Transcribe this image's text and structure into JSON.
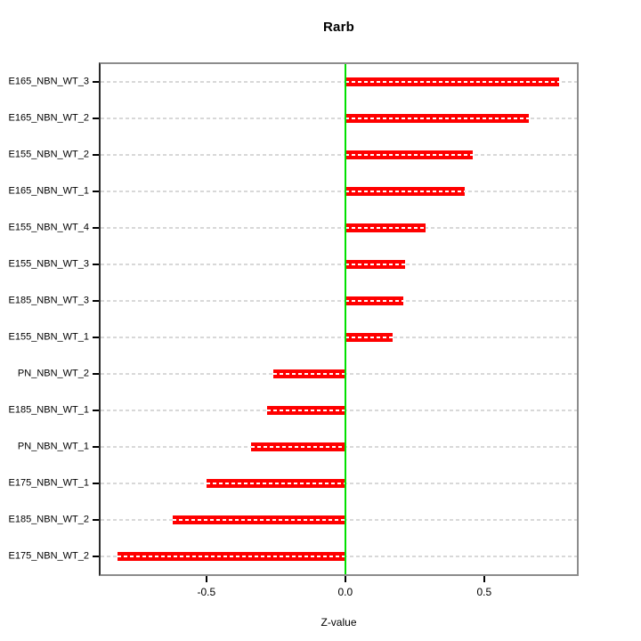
{
  "chart_data": {
    "type": "bar",
    "orientation": "horizontal",
    "title": "Rarb",
    "xlabel": "Z-value",
    "ylabel": "",
    "categories": [
      "E165_NBN_WT_3",
      "E165_NBN_WT_2",
      "E155_NBN_WT_2",
      "E165_NBN_WT_1",
      "E155_NBN_WT_4",
      "E155_NBN_WT_3",
      "E185_NBN_WT_3",
      "E155_NBN_WT_1",
      "PN_NBN_WT_2",
      "E185_NBN_WT_1",
      "PN_NBN_WT_1",
      "E175_NBN_WT_1",
      "E185_NBN_WT_2",
      "E175_NBN_WT_2"
    ],
    "values": [
      0.77,
      0.66,
      0.46,
      0.43,
      0.29,
      0.215,
      0.21,
      0.17,
      -0.26,
      -0.28,
      -0.34,
      -0.5,
      -0.62,
      -0.82
    ],
    "xlim": [
      -0.881,
      0.834
    ],
    "x_ticks": [
      -0.5,
      0.0,
      0.5
    ],
    "x_tick_labels": [
      "-0.5",
      "0.0",
      "0.5"
    ],
    "zero_reference_line": 0.0,
    "grid": "dashed-horizontal-per-row",
    "legend": "none",
    "colors": {
      "bar": "#ff0000",
      "bar_inner_dash": "#ffffff",
      "zero_line": "#00e000",
      "grid_line": "#d8d8d8",
      "box_border": "#8c8c8c",
      "tick": "#000000",
      "text": "#000000",
      "background": "#ffffff"
    }
  }
}
